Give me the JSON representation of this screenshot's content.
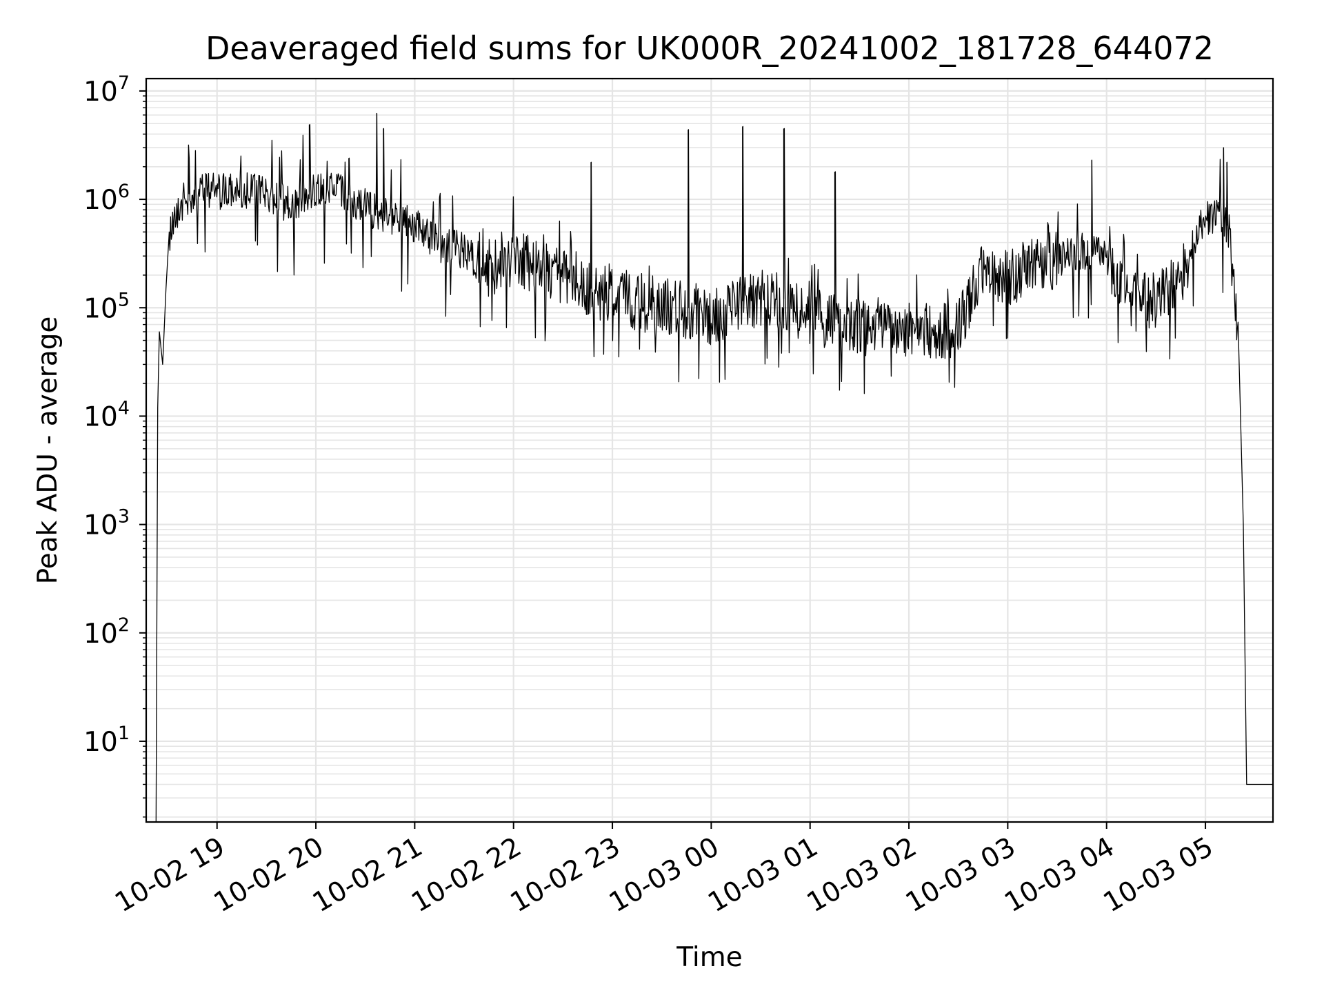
{
  "chart_data": {
    "type": "line",
    "title": "Deaveraged field sums for UK000R_20241002_181728_644072",
    "xlabel": "Time",
    "ylabel": "Peak ADU - average",
    "y_scale": "log",
    "ylim": [
      1.8,
      13000000
    ],
    "xlim": [
      "2024-10-02 18:17",
      "2024-10-03 05:41"
    ],
    "x_ticks": [
      "10-02 19",
      "10-02 20",
      "10-02 21",
      "10-02 22",
      "10-02 23",
      "10-03 00",
      "10-03 01",
      "10-03 02",
      "10-03 03",
      "10-03 04",
      "10-03 05"
    ],
    "x_tick_times": [
      "2024-10-02 19:00",
      "2024-10-02 20:00",
      "2024-10-02 21:00",
      "2024-10-02 22:00",
      "2024-10-02 23:00",
      "2024-10-03 00:00",
      "2024-10-03 01:00",
      "2024-10-03 02:00",
      "2024-10-03 03:00",
      "2024-10-03 04:00",
      "2024-10-03 05:00"
    ],
    "y_ticks": [
      {
        "base": "10",
        "exp": "1",
        "value": 10
      },
      {
        "base": "10",
        "exp": "2",
        "value": 100
      },
      {
        "base": "10",
        "exp": "3",
        "value": 1000
      },
      {
        "base": "10",
        "exp": "4",
        "value": 10000
      },
      {
        "base": "10",
        "exp": "5",
        "value": 100000
      },
      {
        "base": "10",
        "exp": "6",
        "value": 1000000
      },
      {
        "base": "10",
        "exp": "7",
        "value": 10000000
      }
    ],
    "grid": true,
    "line_color": "#000000",
    "grid_color": "#e5e5e5",
    "series": [
      {
        "x": [
          "2024-10-02 18:23",
          "2024-10-02 18:24",
          "2024-10-02 18:25",
          "2024-10-02 18:27",
          "2024-10-02 18:29",
          "2024-10-02 18:31",
          "2024-10-02 18:35",
          "2024-10-02 18:40",
          "2024-10-02 18:45",
          "2024-10-02 18:50",
          "2024-10-02 18:55",
          "2024-10-02 19:00",
          "2024-10-02 19:15",
          "2024-10-02 19:30",
          "2024-10-02 19:45",
          "2024-10-02 20:00",
          "2024-10-02 20:15",
          "2024-10-02 20:30",
          "2024-10-02 20:45",
          "2024-10-02 21:00",
          "2024-10-02 21:15",
          "2024-10-02 21:30",
          "2024-10-02 21:45",
          "2024-10-02 22:00",
          "2024-10-02 22:15",
          "2024-10-02 22:30",
          "2024-10-02 22:45",
          "2024-10-02 23:00",
          "2024-10-02 23:15",
          "2024-10-02 23:30",
          "2024-10-02 23:45",
          "2024-10-03 00:00",
          "2024-10-03 00:15",
          "2024-10-03 00:30",
          "2024-10-03 00:45",
          "2024-10-03 01:00",
          "2024-10-03 01:15",
          "2024-10-03 01:30",
          "2024-10-03 01:45",
          "2024-10-03 02:00",
          "2024-10-03 02:15",
          "2024-10-03 02:30",
          "2024-10-03 02:45",
          "2024-10-03 03:00",
          "2024-10-03 03:15",
          "2024-10-03 03:30",
          "2024-10-03 03:45",
          "2024-10-03 04:00",
          "2024-10-03 04:15",
          "2024-10-03 04:30",
          "2024-10-03 04:45",
          "2024-10-03 05:00",
          "2024-10-03 05:10",
          "2024-10-03 05:15",
          "2024-10-03 05:20",
          "2024-10-03 05:23",
          "2024-10-03 05:25",
          "2024-10-03 05:27",
          "2024-10-03 05:29",
          "2024-10-03 05:41"
        ],
        "y": [
          1.8,
          12000,
          60000,
          30000,
          150000,
          500000,
          800000,
          1000000,
          1200000,
          1300000,
          1300000,
          1200000,
          1300000,
          1200000,
          900000,
          1300000,
          1200000,
          900000,
          700000,
          600000,
          400000,
          350000,
          250000,
          300000,
          250000,
          200000,
          150000,
          150000,
          120000,
          110000,
          100000,
          90000,
          110000,
          130000,
          120000,
          90000,
          80000,
          70000,
          75000,
          70000,
          65000,
          70000,
          250000,
          200000,
          250000,
          300000,
          350000,
          300000,
          120000,
          120000,
          200000,
          700000,
          700000,
          500000,
          40000,
          1000,
          4,
          4,
          4,
          4
        ],
        "peaks": [
          {
            "x": "2024-10-02 18:43",
            "y": 2400000
          },
          {
            "x": "2024-10-02 19:56",
            "y": 4900000
          },
          {
            "x": "2024-10-02 20:20",
            "y": 2400000
          },
          {
            "x": "2024-10-02 20:37",
            "y": 6200000
          },
          {
            "x": "2024-10-02 20:41",
            "y": 4500000
          },
          {
            "x": "2024-10-02 22:47",
            "y": 2200000
          },
          {
            "x": "2024-10-02 23:46",
            "y": 4400000
          },
          {
            "x": "2024-10-03 00:19",
            "y": 4700000
          },
          {
            "x": "2024-10-03 00:44",
            "y": 4500000
          },
          {
            "x": "2024-10-03 01:15",
            "y": 1800000
          },
          {
            "x": "2024-10-03 03:51",
            "y": 2300000
          },
          {
            "x": "2024-10-03 05:11",
            "y": 3000000
          },
          {
            "x": "2024-10-03 05:13",
            "y": 2200000
          }
        ]
      }
    ]
  }
}
